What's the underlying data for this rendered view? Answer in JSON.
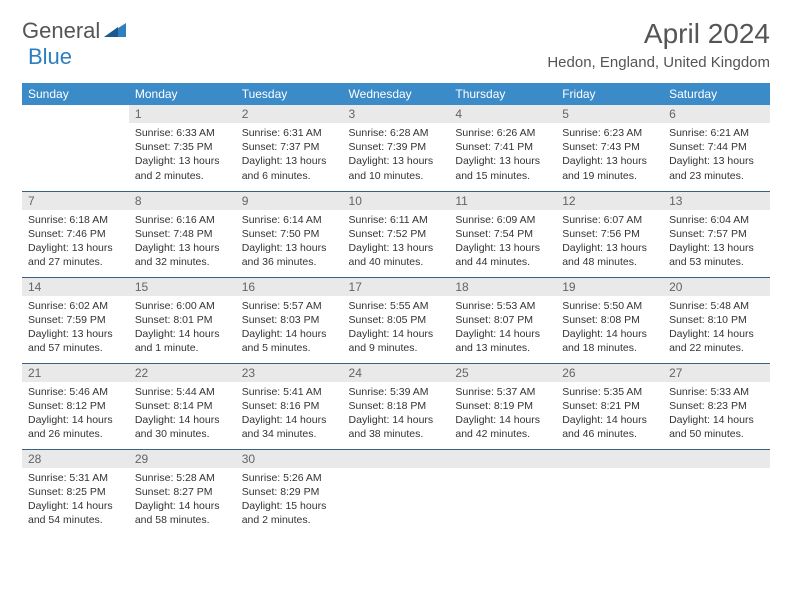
{
  "logo": {
    "general": "General",
    "blue": "Blue"
  },
  "title": "April 2024",
  "location": "Hedon, England, United Kingdom",
  "colors": {
    "header_bg": "#3b8bc9",
    "header_text": "#ffffff",
    "daynum_bg": "#e9e9e9",
    "daynum_text": "#646464",
    "border": "#3b5f7f",
    "logo_blue": "#2d7fc0"
  },
  "day_headers": [
    "Sunday",
    "Monday",
    "Tuesday",
    "Wednesday",
    "Thursday",
    "Friday",
    "Saturday"
  ],
  "weeks": [
    [
      {
        "n": "",
        "sr": "",
        "ss": "",
        "dl": ""
      },
      {
        "n": "1",
        "sr": "Sunrise: 6:33 AM",
        "ss": "Sunset: 7:35 PM",
        "dl": "Daylight: 13 hours and 2 minutes."
      },
      {
        "n": "2",
        "sr": "Sunrise: 6:31 AM",
        "ss": "Sunset: 7:37 PM",
        "dl": "Daylight: 13 hours and 6 minutes."
      },
      {
        "n": "3",
        "sr": "Sunrise: 6:28 AM",
        "ss": "Sunset: 7:39 PM",
        "dl": "Daylight: 13 hours and 10 minutes."
      },
      {
        "n": "4",
        "sr": "Sunrise: 6:26 AM",
        "ss": "Sunset: 7:41 PM",
        "dl": "Daylight: 13 hours and 15 minutes."
      },
      {
        "n": "5",
        "sr": "Sunrise: 6:23 AM",
        "ss": "Sunset: 7:43 PM",
        "dl": "Daylight: 13 hours and 19 minutes."
      },
      {
        "n": "6",
        "sr": "Sunrise: 6:21 AM",
        "ss": "Sunset: 7:44 PM",
        "dl": "Daylight: 13 hours and 23 minutes."
      }
    ],
    [
      {
        "n": "7",
        "sr": "Sunrise: 6:18 AM",
        "ss": "Sunset: 7:46 PM",
        "dl": "Daylight: 13 hours and 27 minutes."
      },
      {
        "n": "8",
        "sr": "Sunrise: 6:16 AM",
        "ss": "Sunset: 7:48 PM",
        "dl": "Daylight: 13 hours and 32 minutes."
      },
      {
        "n": "9",
        "sr": "Sunrise: 6:14 AM",
        "ss": "Sunset: 7:50 PM",
        "dl": "Daylight: 13 hours and 36 minutes."
      },
      {
        "n": "10",
        "sr": "Sunrise: 6:11 AM",
        "ss": "Sunset: 7:52 PM",
        "dl": "Daylight: 13 hours and 40 minutes."
      },
      {
        "n": "11",
        "sr": "Sunrise: 6:09 AM",
        "ss": "Sunset: 7:54 PM",
        "dl": "Daylight: 13 hours and 44 minutes."
      },
      {
        "n": "12",
        "sr": "Sunrise: 6:07 AM",
        "ss": "Sunset: 7:56 PM",
        "dl": "Daylight: 13 hours and 48 minutes."
      },
      {
        "n": "13",
        "sr": "Sunrise: 6:04 AM",
        "ss": "Sunset: 7:57 PM",
        "dl": "Daylight: 13 hours and 53 minutes."
      }
    ],
    [
      {
        "n": "14",
        "sr": "Sunrise: 6:02 AM",
        "ss": "Sunset: 7:59 PM",
        "dl": "Daylight: 13 hours and 57 minutes."
      },
      {
        "n": "15",
        "sr": "Sunrise: 6:00 AM",
        "ss": "Sunset: 8:01 PM",
        "dl": "Daylight: 14 hours and 1 minute."
      },
      {
        "n": "16",
        "sr": "Sunrise: 5:57 AM",
        "ss": "Sunset: 8:03 PM",
        "dl": "Daylight: 14 hours and 5 minutes."
      },
      {
        "n": "17",
        "sr": "Sunrise: 5:55 AM",
        "ss": "Sunset: 8:05 PM",
        "dl": "Daylight: 14 hours and 9 minutes."
      },
      {
        "n": "18",
        "sr": "Sunrise: 5:53 AM",
        "ss": "Sunset: 8:07 PM",
        "dl": "Daylight: 14 hours and 13 minutes."
      },
      {
        "n": "19",
        "sr": "Sunrise: 5:50 AM",
        "ss": "Sunset: 8:08 PM",
        "dl": "Daylight: 14 hours and 18 minutes."
      },
      {
        "n": "20",
        "sr": "Sunrise: 5:48 AM",
        "ss": "Sunset: 8:10 PM",
        "dl": "Daylight: 14 hours and 22 minutes."
      }
    ],
    [
      {
        "n": "21",
        "sr": "Sunrise: 5:46 AM",
        "ss": "Sunset: 8:12 PM",
        "dl": "Daylight: 14 hours and 26 minutes."
      },
      {
        "n": "22",
        "sr": "Sunrise: 5:44 AM",
        "ss": "Sunset: 8:14 PM",
        "dl": "Daylight: 14 hours and 30 minutes."
      },
      {
        "n": "23",
        "sr": "Sunrise: 5:41 AM",
        "ss": "Sunset: 8:16 PM",
        "dl": "Daylight: 14 hours and 34 minutes."
      },
      {
        "n": "24",
        "sr": "Sunrise: 5:39 AM",
        "ss": "Sunset: 8:18 PM",
        "dl": "Daylight: 14 hours and 38 minutes."
      },
      {
        "n": "25",
        "sr": "Sunrise: 5:37 AM",
        "ss": "Sunset: 8:19 PM",
        "dl": "Daylight: 14 hours and 42 minutes."
      },
      {
        "n": "26",
        "sr": "Sunrise: 5:35 AM",
        "ss": "Sunset: 8:21 PM",
        "dl": "Daylight: 14 hours and 46 minutes."
      },
      {
        "n": "27",
        "sr": "Sunrise: 5:33 AM",
        "ss": "Sunset: 8:23 PM",
        "dl": "Daylight: 14 hours and 50 minutes."
      }
    ],
    [
      {
        "n": "28",
        "sr": "Sunrise: 5:31 AM",
        "ss": "Sunset: 8:25 PM",
        "dl": "Daylight: 14 hours and 54 minutes."
      },
      {
        "n": "29",
        "sr": "Sunrise: 5:28 AM",
        "ss": "Sunset: 8:27 PM",
        "dl": "Daylight: 14 hours and 58 minutes."
      },
      {
        "n": "30",
        "sr": "Sunrise: 5:26 AM",
        "ss": "Sunset: 8:29 PM",
        "dl": "Daylight: 15 hours and 2 minutes."
      },
      {
        "n": "",
        "sr": "",
        "ss": "",
        "dl": ""
      },
      {
        "n": "",
        "sr": "",
        "ss": "",
        "dl": ""
      },
      {
        "n": "",
        "sr": "",
        "ss": "",
        "dl": ""
      },
      {
        "n": "",
        "sr": "",
        "ss": "",
        "dl": ""
      }
    ]
  ]
}
